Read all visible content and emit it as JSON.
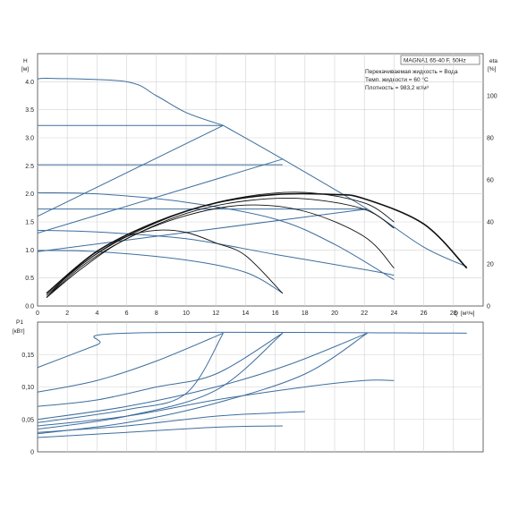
{
  "chart_data": [
    {
      "type": "line",
      "title": "MAGNA1 65-40 F, 50Hz",
      "annotations": [
        "Перекачиваемая жидкость = Вода",
        "Темп. жидкости = 60 °C",
        "Плотность = 983,2 кг/м³"
      ],
      "ylabel": "H",
      "yunit": "[м]",
      "y2label": "eta",
      "y2unit": "[%]",
      "xlabel": "Q",
      "xunit": "[м³/ч]",
      "xlim": [
        0,
        30
      ],
      "ylim": [
        0,
        4.5
      ],
      "y2lim": [
        0,
        120
      ],
      "x_ticks": [
        "0",
        "2",
        "4",
        "6",
        "8",
        "10",
        "12",
        "14",
        "16",
        "18",
        "20",
        "22",
        "24",
        "26",
        "28"
      ],
      "y_ticks": [
        "0.0",
        "0.5",
        "1.0",
        "1.5",
        "2.0",
        "2.5",
        "3.0",
        "3.5",
        "4.0"
      ],
      "y2_ticks": [
        "0",
        "20",
        "40",
        "60",
        "80",
        "100"
      ],
      "grid": true,
      "head_curves": [
        {
          "style": "blue",
          "points": [
            [
              0,
              4.05
            ],
            [
              1,
              4.06
            ],
            [
              6,
              4.0
            ],
            [
              8,
              3.75
            ],
            [
              10,
              3.45
            ],
            [
              12.5,
              3.22
            ]
          ]
        },
        {
          "style": "blue",
          "points": [
            [
              0,
              3.22
            ],
            [
              12.5,
              3.22
            ]
          ]
        },
        {
          "style": "blue",
          "points": [
            [
              0,
              2.52
            ],
            [
              16.5,
              2.52
            ]
          ]
        },
        {
          "style": "blue",
          "points": [
            [
              0,
              1.73
            ],
            [
              22.2,
              1.73
            ]
          ]
        },
        {
          "style": "blue",
          "points": [
            [
              12.5,
              3.22
            ],
            [
              16.5,
              2.62
            ],
            [
              22.2,
              1.73
            ],
            [
              26,
              1.05
            ],
            [
              28.9,
              0.7
            ]
          ]
        },
        {
          "style": "blue",
          "points": [
            [
              0,
              1.6
            ],
            [
              12.5,
              3.22
            ]
          ]
        },
        {
          "style": "blue",
          "points": [
            [
              0,
              1.3
            ],
            [
              16.5,
              2.62
            ]
          ]
        },
        {
          "style": "blue",
          "points": [
            [
              0,
              0.97
            ],
            [
              22.2,
              1.73
            ]
          ]
        },
        {
          "style": "blue",
          "points": [
            [
              0,
              2.02
            ],
            [
              4,
              2.0
            ],
            [
              10,
              1.85
            ],
            [
              16,
              1.55
            ],
            [
              20,
              1.1
            ],
            [
              24,
              0.47
            ]
          ]
        },
        {
          "style": "blue",
          "points": [
            [
              0,
              1.35
            ],
            [
              4,
              1.32
            ],
            [
              10,
              1.2
            ],
            [
              16,
              0.92
            ],
            [
              22,
              0.65
            ],
            [
              24,
              0.55
            ]
          ]
        },
        {
          "style": "blue",
          "points": [
            [
              0,
              0.99
            ],
            [
              4,
              0.97
            ],
            [
              10,
              0.82
            ],
            [
              14,
              0.6
            ],
            [
              16.5,
              0.23
            ]
          ]
        }
      ],
      "efficiency_curves": [
        {
          "style": "black",
          "points": [
            [
              0.6,
              4
            ],
            [
              2,
              14
            ],
            [
              4,
              25
            ],
            [
              6,
              33
            ],
            [
              8,
              36
            ],
            [
              10,
              35
            ],
            [
              12,
              30
            ],
            [
              14,
              24
            ],
            [
              16.5,
              6
            ]
          ]
        },
        {
          "style": "black",
          "points": [
            [
              0.6,
              4
            ],
            [
              3,
              18
            ],
            [
              6,
              32
            ],
            [
              10,
              43
            ],
            [
              14,
              48
            ],
            [
              18,
              45
            ],
            [
              22,
              33
            ],
            [
              24,
              18
            ]
          ]
        },
        {
          "style": "black",
          "points": [
            [
              0.6,
              4
            ],
            [
              3,
              19
            ],
            [
              6,
              32
            ],
            [
              10,
              44
            ],
            [
              14,
              50
            ],
            [
              18,
              51
            ],
            [
              22,
              46
            ],
            [
              24,
              37
            ]
          ]
        },
        {
          "style": "black",
          "points": [
            [
              0.6,
              5
            ],
            [
              3,
              20
            ],
            [
              6,
              33
            ],
            [
              10,
              45
            ],
            [
              14,
              52
            ],
            [
              18,
              54
            ],
            [
              22,
              49
            ],
            [
              24,
              40
            ]
          ]
        },
        {
          "style": "black-bold",
          "points": [
            [
              0.6,
              6
            ],
            [
              4,
              26
            ],
            [
              8,
              40
            ],
            [
              12,
              49
            ],
            [
              16,
              53
            ],
            [
              20,
              53
            ],
            [
              22,
              51
            ],
            [
              26,
              39
            ],
            [
              28.9,
              18
            ]
          ]
        }
      ]
    },
    {
      "type": "line",
      "ylabel": "P1",
      "yunit": "[кВт]",
      "xlim": [
        0,
        30
      ],
      "ylim": [
        0,
        0.2
      ],
      "y_ticks": [
        "0",
        "0,05",
        "0,10",
        "0,15"
      ],
      "grid": true,
      "power_curves": [
        {
          "points": [
            [
              0,
              0.13
            ],
            [
              4,
              0.165
            ],
            [
              6,
              0.183
            ],
            [
              28.9,
              0.183
            ]
          ]
        },
        {
          "points": [
            [
              0,
              0.092
            ],
            [
              4,
              0.11
            ],
            [
              8,
              0.14
            ],
            [
              12.5,
              0.183
            ]
          ]
        },
        {
          "points": [
            [
              0,
              0.07
            ],
            [
              4,
              0.08
            ],
            [
              8,
              0.1
            ],
            [
              12,
              0.12
            ],
            [
              16.5,
              0.183
            ]
          ]
        },
        {
          "points": [
            [
              0,
              0.05
            ],
            [
              6,
              0.07
            ],
            [
              12,
              0.1
            ],
            [
              17,
              0.135
            ],
            [
              22.2,
              0.183
            ]
          ]
        },
        {
          "points": [
            [
              0,
              0.045
            ],
            [
              6,
              0.065
            ],
            [
              10,
              0.09
            ],
            [
              12.5,
              0.183
            ]
          ]
        },
        {
          "points": [
            [
              0,
              0.035
            ],
            [
              6,
              0.055
            ],
            [
              12,
              0.095
            ],
            [
              16.5,
              0.183
            ]
          ]
        },
        {
          "points": [
            [
              0,
              0.028
            ],
            [
              6,
              0.045
            ],
            [
              12,
              0.075
            ],
            [
              18,
              0.12
            ],
            [
              22.2,
              0.183
            ]
          ]
        },
        {
          "points": [
            [
              0,
              0.04
            ],
            [
              6,
              0.055
            ],
            [
              12,
              0.08
            ],
            [
              18,
              0.1
            ],
            [
              22,
              0.11
            ],
            [
              24,
              0.11
            ]
          ]
        },
        {
          "points": [
            [
              0,
              0.03
            ],
            [
              6,
              0.04
            ],
            [
              12,
              0.055
            ],
            [
              16,
              0.06
            ],
            [
              18,
              0.062
            ]
          ]
        },
        {
          "points": [
            [
              0,
              0.022
            ],
            [
              6,
              0.03
            ],
            [
              12,
              0.038
            ],
            [
              16.5,
              0.04
            ]
          ]
        }
      ]
    }
  ]
}
